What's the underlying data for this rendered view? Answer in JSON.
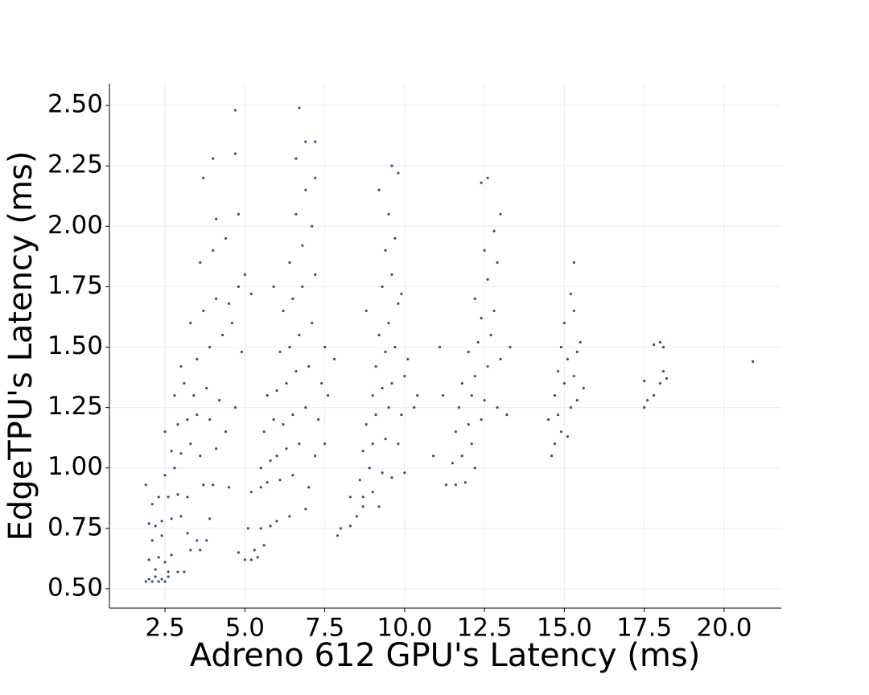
{
  "chart_data": {
    "type": "scatter",
    "x_label": "Adreno 612 GPU's Latency (ms)",
    "y_label": "EdgeTPU's Latency (ms)",
    "xlim": [
      0.76,
      21.79
    ],
    "ylim": [
      0.42,
      2.59
    ],
    "xticks": [
      2.5,
      {
        "value": 5,
        "label": "5.0"
      },
      7.5,
      {
        "value": 10,
        "label": "10.0"
      },
      12.5,
      {
        "value": 15,
        "label": "15.0"
      },
      17.5,
      {
        "value": 20,
        "label": "20.0"
      }
    ],
    "yticks": [
      {
        "value": 0.5,
        "label": "0.50"
      },
      0.75,
      {
        "value": 1,
        "label": "1.00"
      },
      1.25,
      {
        "value": 1.5,
        "label": "1.50"
      },
      1.75,
      {
        "value": 2,
        "label": "2.00"
      },
      2.25,
      {
        "value": 2.5,
        "label": "2.50"
      }
    ],
    "grid": true,
    "color": "#34507a",
    "x": [
      1.9,
      2.0,
      2.1,
      2.2,
      2.3,
      2.4,
      2.5,
      2.6,
      2.2,
      2.6,
      2.9,
      3.1,
      2.0,
      2.3,
      2.5,
      2.7,
      3.3,
      3.6,
      2.1,
      2.4,
      3.5,
      3.8,
      2.0,
      2.2,
      2.4,
      2.7,
      3.0,
      3.9,
      2.1,
      2.3,
      2.6,
      2.9,
      3.2,
      3.7,
      4.0,
      1.9,
      2.5,
      2.8,
      2.7,
      3.0,
      3.3,
      3.6,
      4.1,
      2.5,
      2.9,
      3.2,
      3.5,
      3.9,
      4.4,
      2.8,
      3.1,
      3.4,
      3.8,
      4.2,
      4.7,
      3.0,
      3.5,
      3.9,
      4.3,
      4.6,
      3.3,
      3.7,
      4.1,
      4.5,
      4.8,
      3.6,
      4.0,
      4.4,
      4.8,
      3.7,
      4.0,
      4.7,
      4.7,
      4.1,
      5.0,
      4.9,
      5.2,
      4.5,
      4.8,
      3.2,
      5.0,
      5.2,
      5.4,
      5.3,
      5.6,
      5.1,
      5.5,
      5.8,
      6.0,
      6.4,
      6.9,
      5.2,
      5.5,
      5.7,
      6.1,
      6.5,
      7.0,
      5.5,
      5.8,
      6.0,
      6.3,
      6.7,
      7.2,
      5.6,
      5.9,
      6.2,
      6.5,
      6.9,
      7.3,
      5.7,
      6.0,
      6.3,
      6.6,
      7.0,
      7.4,
      6.1,
      6.4,
      6.7,
      7.1,
      7.5,
      6.2,
      6.5,
      6.8,
      7.2,
      6.4,
      6.8,
      7.1,
      6.6,
      6.9,
      7.2,
      6.6,
      6.9,
      7.2,
      6.7,
      5.9,
      7.6,
      7.5,
      7.8,
      7.9,
      8.0,
      8.3,
      8.5,
      8.3,
      8.7,
      9.0,
      8.7,
      9.2,
      8.6,
      8.9,
      9.3,
      9.6,
      10.0,
      8.7,
      9.0,
      9.4,
      9.8,
      8.8,
      9.1,
      9.5,
      9.9,
      10.3,
      9.0,
      9.3,
      9.6,
      10.0,
      9.1,
      9.4,
      9.7,
      10.1,
      9.2,
      9.5,
      9.8,
      9.3,
      9.6,
      9.9,
      9.4,
      9.7,
      9.5,
      9.2,
      9.8,
      9.6,
      8.8,
      10.4,
      11.3,
      11.6,
      11.9,
      11.5,
      11.8,
      12.1,
      11.6,
      12.0,
      12.4,
      11.7,
      12.1,
      12.5,
      12.9,
      13.2,
      11.8,
      12.2,
      12.6,
      13.0,
      12.0,
      12.3,
      12.7,
      12.4,
      12.8,
      12.2,
      12.6,
      12.9,
      12.5,
      12.8,
      13.0,
      12.4,
      12.6,
      11.2,
      10.9,
      11.1,
      13.3,
      12.2,
      14.6,
      14.7,
      14.9,
      15.1,
      14.5,
      14.8,
      15.2,
      15.4,
      14.7,
      15.0,
      15.3,
      15.6,
      14.8,
      15.1,
      15.4,
      15.5,
      15.0,
      15.3,
      15.2,
      15.3,
      14.9,
      17.5,
      17.6,
      17.8,
      18.0,
      18.2,
      17.5,
      18.1,
      17.8,
      18.0,
      18.1,
      20.9
    ],
    "values": [
      0.53,
      0.54,
      0.53,
      0.55,
      0.53,
      0.54,
      0.53,
      0.55,
      0.58,
      0.57,
      0.57,
      0.57,
      0.62,
      0.63,
      0.61,
      0.64,
      0.66,
      0.66,
      0.7,
      0.72,
      0.7,
      0.7,
      0.77,
      0.76,
      0.78,
      0.79,
      0.8,
      0.79,
      0.85,
      0.88,
      0.88,
      0.89,
      0.88,
      0.93,
      0.93,
      0.93,
      0.97,
      1.0,
      1.07,
      1.06,
      1.1,
      1.05,
      1.08,
      1.15,
      1.18,
      1.2,
      1.22,
      1.2,
      1.15,
      1.3,
      1.35,
      1.3,
      1.33,
      1.28,
      1.25,
      1.42,
      1.45,
      1.5,
      1.55,
      1.6,
      1.6,
      1.65,
      1.7,
      1.68,
      1.75,
      1.85,
      1.9,
      1.95,
      2.05,
      2.2,
      2.28,
      2.3,
      2.48,
      2.03,
      1.8,
      1.48,
      1.72,
      0.92,
      0.65,
      0.73,
      0.62,
      0.62,
      0.63,
      0.66,
      0.68,
      0.75,
      0.75,
      0.76,
      0.78,
      0.8,
      0.83,
      0.9,
      0.92,
      0.94,
      0.95,
      0.97,
      0.92,
      1.0,
      1.03,
      1.05,
      1.08,
      1.1,
      1.05,
      1.15,
      1.2,
      1.18,
      1.22,
      1.25,
      1.2,
      1.3,
      1.32,
      1.35,
      1.4,
      1.42,
      1.35,
      1.48,
      1.5,
      1.55,
      1.6,
      1.5,
      1.65,
      1.7,
      1.75,
      1.8,
      1.85,
      1.92,
      2.0,
      2.05,
      2.15,
      2.2,
      2.28,
      2.35,
      2.35,
      2.49,
      1.75,
      1.3,
      1.1,
      1.45,
      0.72,
      0.75,
      0.76,
      0.8,
      0.88,
      0.88,
      0.9,
      0.84,
      0.84,
      0.95,
      1.0,
      0.98,
      0.96,
      0.98,
      1.07,
      1.1,
      1.12,
      1.1,
      1.18,
      1.22,
      1.25,
      1.22,
      1.25,
      1.3,
      1.33,
      1.35,
      1.38,
      1.42,
      1.48,
      1.5,
      1.45,
      1.55,
      1.6,
      1.68,
      1.75,
      1.8,
      1.72,
      1.9,
      1.95,
      2.05,
      2.15,
      2.22,
      2.25,
      1.65,
      1.3,
      0.93,
      0.93,
      0.94,
      1.02,
      1.05,
      1.1,
      1.15,
      1.18,
      1.2,
      1.25,
      1.3,
      1.28,
      1.25,
      1.22,
      1.35,
      1.38,
      1.42,
      1.45,
      1.48,
      1.52,
      1.55,
      1.62,
      1.65,
      1.7,
      1.78,
      1.85,
      1.9,
      1.98,
      2.05,
      2.18,
      2.2,
      1.3,
      1.05,
      1.5,
      1.5,
      1.0,
      1.05,
      1.1,
      1.15,
      1.13,
      1.2,
      1.22,
      1.25,
      1.28,
      1.3,
      1.35,
      1.38,
      1.33,
      1.4,
      1.45,
      1.48,
      1.52,
      1.6,
      1.65,
      1.72,
      1.85,
      1.5,
      1.25,
      1.28,
      1.3,
      1.35,
      1.37,
      1.36,
      1.4,
      1.51,
      1.52,
      1.5,
      1.44
    ]
  }
}
